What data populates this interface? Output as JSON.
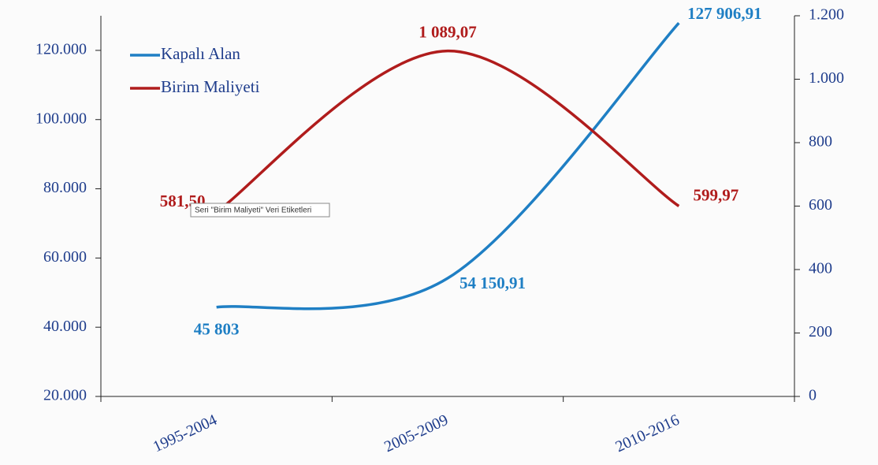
{
  "chart_data": {
    "type": "line",
    "categories": [
      "1995-2004",
      "2005-2009",
      "2010-2016"
    ],
    "series": [
      {
        "name": "Kapalı Alan",
        "color": "#1f7fc4",
        "values": [
          45803,
          54150.91,
          127906.91
        ],
        "value_labels": [
          "45 803",
          "54 150,91",
          "127 906,91"
        ]
      },
      {
        "name": "Birim Maliyeti",
        "color": "#b01c1c",
        "axis": "y2",
        "values": [
          581.5,
          1089.07,
          599.97
        ],
        "value_labels": [
          "581,50",
          "1 089,07",
          "599,97"
        ]
      }
    ],
    "ylim": [
      20000,
      130000
    ],
    "yticks": [
      {
        "value": 20000,
        "label": "20.000"
      },
      {
        "value": 40000,
        "label": "40.000"
      },
      {
        "value": 60000,
        "label": "60.000"
      },
      {
        "value": 80000,
        "label": "80.000"
      },
      {
        "value": 100000,
        "label": "100.000"
      },
      {
        "value": 120000,
        "label": "120.000"
      }
    ],
    "y2lim": [
      0,
      1200
    ],
    "y2ticks": [
      0,
      200,
      400,
      600,
      800,
      {
        "value": 1000,
        "label": "1.000"
      },
      {
        "value": 1200,
        "label": "1.200"
      }
    ],
    "smooth": true,
    "legend": "top-left",
    "tooltip": "Seri \"Birim Maliyeti\" Veri Etiketleri"
  }
}
